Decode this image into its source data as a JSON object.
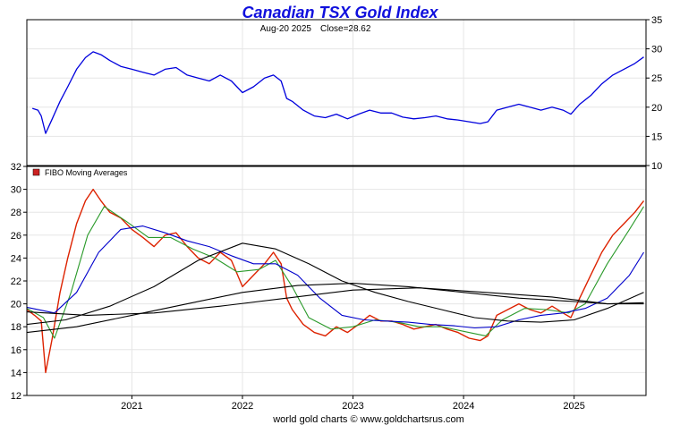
{
  "chart_data": [
    {
      "type": "line",
      "title": "Canadian TSX Gold Index",
      "subtitle_date": "Aug-20  2025",
      "subtitle_close": "Close=28.62",
      "ylim": [
        10,
        35
      ],
      "y_ticks": [
        10,
        15,
        20,
        25,
        30,
        35
      ],
      "y_axis_side": "right",
      "grid": true,
      "series": [
        {
          "color": "#0000dd",
          "x": [
            2020.1,
            2020.15,
            2020.18,
            2020.22,
            2020.28,
            2020.35,
            2020.42,
            2020.5,
            2020.58,
            2020.65,
            2020.72,
            2020.8,
            2020.9,
            2021.0,
            2021.1,
            2021.2,
            2021.3,
            2021.4,
            2021.5,
            2021.6,
            2021.7,
            2021.8,
            2021.9,
            2022.0,
            2022.1,
            2022.2,
            2022.28,
            2022.35,
            2022.4,
            2022.45,
            2022.55,
            2022.65,
            2022.75,
            2022.85,
            2022.95,
            2023.05,
            2023.15,
            2023.25,
            2023.35,
            2023.45,
            2023.55,
            2023.65,
            2023.75,
            2023.85,
            2023.95,
            2024.05,
            2024.15,
            2024.22,
            2024.3,
            2024.4,
            2024.5,
            2024.6,
            2024.7,
            2024.8,
            2024.9,
            2024.97,
            2025.05,
            2025.15,
            2025.25,
            2025.35,
            2025.45,
            2025.55,
            2025.63
          ],
          "y": [
            19.8,
            19.5,
            18.5,
            15.5,
            18.0,
            21.0,
            23.5,
            26.5,
            28.5,
            29.5,
            29.0,
            28.0,
            27.0,
            26.5,
            26.0,
            25.5,
            26.5,
            26.8,
            25.5,
            25.0,
            24.5,
            25.5,
            24.5,
            22.5,
            23.5,
            25.0,
            25.5,
            24.5,
            21.5,
            21.0,
            19.5,
            18.5,
            18.2,
            18.8,
            18.0,
            18.8,
            19.5,
            19.0,
            19.0,
            18.3,
            18.0,
            18.2,
            18.5,
            18.0,
            17.8,
            17.5,
            17.2,
            17.5,
            19.5,
            20.0,
            20.5,
            20.0,
            19.5,
            20.0,
            19.5,
            18.8,
            20.5,
            22.0,
            24.0,
            25.5,
            26.5,
            27.5,
            28.6
          ]
        }
      ]
    },
    {
      "type": "line",
      "legend_label": "FIBO  Moving  Averages",
      "legend_placement": "top-left",
      "legend_color": "#cc2222",
      "ylim": [
        12,
        32
      ],
      "y_ticks": [
        12,
        14,
        16,
        18,
        20,
        22,
        24,
        26,
        28,
        30,
        32
      ],
      "x_ticks": [
        2021,
        2022,
        2023,
        2024,
        2025
      ],
      "x_tick_labels": [
        "2021",
        "2022",
        "2023",
        "2024",
        "2025"
      ],
      "xlim": [
        2020.05,
        2025.65
      ],
      "grid": true,
      "series": [
        {
          "color": "#dd2200",
          "x": [
            2020.05,
            2020.12,
            2020.18,
            2020.22,
            2020.28,
            2020.35,
            2020.42,
            2020.5,
            2020.58,
            2020.65,
            2020.72,
            2020.8,
            2020.9,
            2021.0,
            2021.1,
            2021.2,
            2021.3,
            2021.4,
            2021.5,
            2021.6,
            2021.7,
            2021.8,
            2021.9,
            2022.0,
            2022.1,
            2022.2,
            2022.28,
            2022.35,
            2022.4,
            2022.45,
            2022.55,
            2022.65,
            2022.75,
            2022.85,
            2022.95,
            2023.05,
            2023.15,
            2023.25,
            2023.35,
            2023.45,
            2023.55,
            2023.65,
            2023.75,
            2023.85,
            2023.95,
            2024.05,
            2024.15,
            2024.22,
            2024.3,
            2024.4,
            2024.5,
            2024.6,
            2024.7,
            2024.8,
            2024.9,
            2024.97,
            2025.05,
            2025.15,
            2025.25,
            2025.35,
            2025.45,
            2025.55,
            2025.63
          ],
          "y": [
            19.5,
            19.0,
            18.5,
            14.0,
            17.0,
            21.0,
            24.0,
            27.0,
            29.0,
            30.0,
            29.0,
            28.0,
            27.5,
            26.5,
            25.8,
            25.0,
            26.0,
            26.2,
            25.0,
            24.0,
            23.5,
            24.5,
            23.8,
            21.5,
            22.5,
            23.5,
            24.5,
            23.5,
            20.5,
            19.5,
            18.2,
            17.5,
            17.2,
            18.0,
            17.5,
            18.2,
            19.0,
            18.5,
            18.5,
            18.2,
            17.8,
            18.0,
            18.2,
            17.8,
            17.5,
            17.0,
            16.8,
            17.2,
            19.0,
            19.5,
            20.0,
            19.5,
            19.2,
            19.8,
            19.2,
            18.8,
            20.5,
            22.5,
            24.5,
            26.0,
            27.0,
            28.0,
            29.0
          ]
        },
        {
          "color": "#2a9a2a",
          "x": [
            2020.05,
            2020.2,
            2020.3,
            2020.45,
            2020.6,
            2020.75,
            2020.95,
            2021.15,
            2021.35,
            2021.55,
            2021.75,
            2021.95,
            2022.15,
            2022.3,
            2022.45,
            2022.6,
            2022.8,
            2023.0,
            2023.2,
            2023.4,
            2023.6,
            2023.8,
            2024.0,
            2024.2,
            2024.35,
            2024.55,
            2024.75,
            2024.95,
            2025.1,
            2025.3,
            2025.5,
            2025.63
          ],
          "y": [
            19.6,
            18.8,
            17.0,
            21.0,
            26.0,
            28.5,
            27.2,
            25.8,
            25.8,
            24.8,
            24.0,
            22.8,
            23.0,
            23.8,
            21.5,
            18.8,
            17.8,
            18.0,
            18.6,
            18.4,
            18.0,
            18.0,
            17.6,
            17.2,
            18.6,
            19.6,
            19.5,
            19.2,
            20.0,
            23.5,
            26.5,
            28.5
          ]
        },
        {
          "color": "#0000cc",
          "x": [
            2020.05,
            2020.3,
            2020.5,
            2020.7,
            2020.9,
            2021.1,
            2021.3,
            2021.5,
            2021.7,
            2021.9,
            2022.1,
            2022.3,
            2022.5,
            2022.7,
            2022.9,
            2023.1,
            2023.3,
            2023.5,
            2023.7,
            2023.9,
            2024.1,
            2024.3,
            2024.5,
            2024.7,
            2024.9,
            2025.1,
            2025.3,
            2025.5,
            2025.63
          ],
          "y": [
            19.7,
            19.2,
            21.0,
            24.5,
            26.5,
            26.8,
            26.2,
            25.5,
            25.0,
            24.2,
            23.5,
            23.5,
            22.5,
            20.5,
            19.0,
            18.6,
            18.5,
            18.4,
            18.2,
            18.1,
            17.9,
            18.0,
            18.6,
            19.0,
            19.2,
            19.6,
            20.5,
            22.5,
            24.5
          ]
        },
        {
          "color": "#000000",
          "x": [
            2020.05,
            2020.4,
            2020.8,
            2021.2,
            2021.6,
            2022.0,
            2022.3,
            2022.6,
            2022.9,
            2023.2,
            2023.5,
            2023.8,
            2024.1,
            2024.4,
            2024.7,
            2025.0,
            2025.3,
            2025.63
          ],
          "y": [
            18.2,
            18.6,
            19.8,
            21.5,
            23.8,
            25.3,
            24.8,
            23.5,
            22.0,
            21.0,
            20.2,
            19.5,
            18.8,
            18.5,
            18.4,
            18.6,
            19.6,
            21.0
          ]
        },
        {
          "color": "#000000",
          "x": [
            2020.05,
            2020.5,
            2021.0,
            2021.5,
            2022.0,
            2022.5,
            2023.0,
            2023.5,
            2024.0,
            2024.5,
            2025.0,
            2025.3,
            2025.63
          ],
          "y": [
            17.5,
            18.0,
            19.0,
            20.0,
            21.0,
            21.6,
            21.8,
            21.5,
            21.0,
            20.5,
            20.2,
            20.0,
            20.0
          ]
        },
        {
          "color": "#000000",
          "x": [
            2020.05,
            2020.6,
            2021.2,
            2021.8,
            2022.4,
            2023.0,
            2023.6,
            2024.2,
            2024.8,
            2025.3,
            2025.63
          ],
          "y": [
            19.3,
            19.0,
            19.2,
            19.8,
            20.5,
            21.2,
            21.4,
            21.0,
            20.6,
            20.0,
            20.1
          ]
        }
      ]
    }
  ],
  "credit": "world gold charts © www.goldchartsrus.com"
}
